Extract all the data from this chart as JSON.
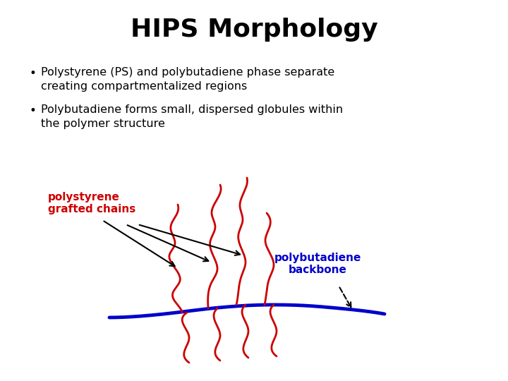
{
  "title": "HIPS Morphology",
  "bullet1_line1": "Polystyrene (PS) and polybutadiene phase separate",
  "bullet1_line2": "creating compartmentalized regions",
  "bullet2_line1": "Polybutadiene forms small, dispersed globules within",
  "bullet2_line2": "the polymer structure",
  "label_ps": "polystyrene\ngrafted chains",
  "label_pb": "polybutadiene\nbackbone",
  "bg_color": "#ffffff",
  "title_color": "#000000",
  "bullet_color": "#000000",
  "ps_color": "#cc0000",
  "pb_color": "#0000cc",
  "label_ps_color": "#cc0000",
  "label_pb_color": "#0000cc",
  "arrow_color": "#000000"
}
